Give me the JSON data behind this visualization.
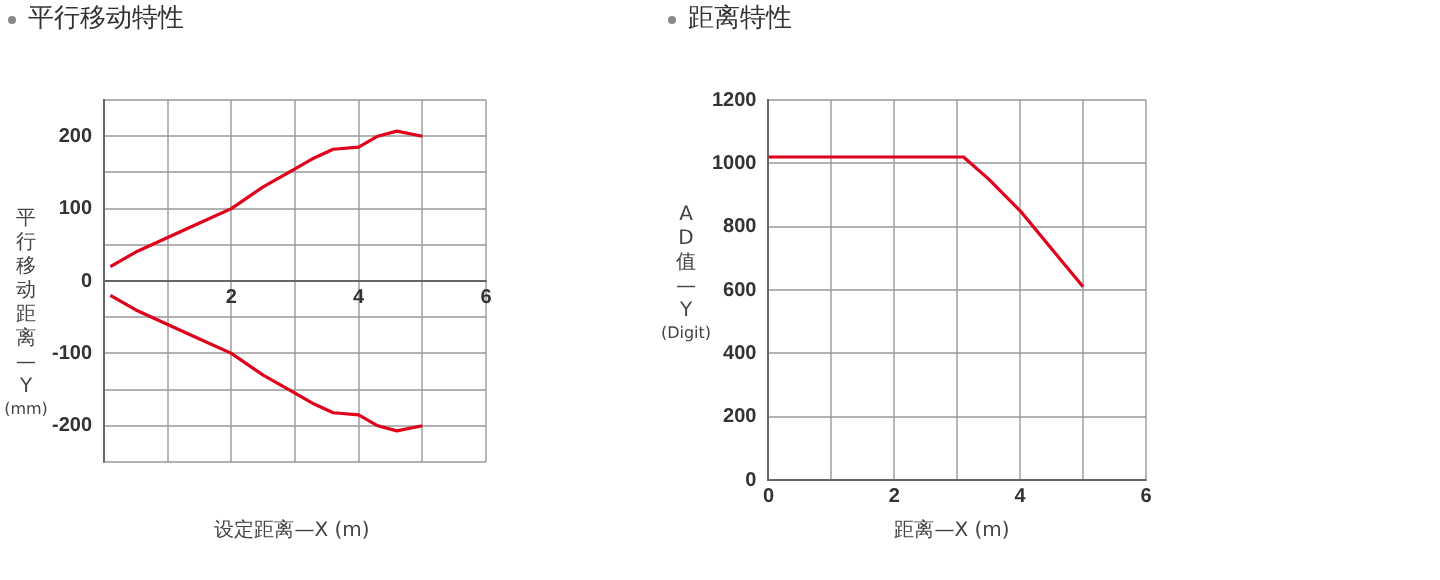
{
  "chart_data": [
    {
      "type": "line",
      "title": "平行移动特性",
      "xlabel": "设定距离—X (m)",
      "ylabel": "平行移动距离—Y (mm)",
      "marker": "none",
      "grid": true,
      "xlim": [
        0,
        6
      ],
      "xticks": [
        {
          "value": 0,
          "label": null
        },
        {
          "value": 1,
          "label": null
        },
        2,
        {
          "value": 3,
          "label": null
        },
        4,
        {
          "value": 5,
          "label": null
        },
        6
      ],
      "ylim": [
        -250,
        250
      ],
      "yticks": [
        {
          "value": -250,
          "label": null
        },
        -200,
        {
          "value": -150,
          "label": null
        },
        -100,
        {
          "value": -50,
          "label": null
        },
        0,
        {
          "value": 50,
          "label": null
        },
        100,
        {
          "value": 150,
          "label": null
        },
        200,
        {
          "value": 250,
          "label": null
        }
      ],
      "x": [
        0.1,
        0.5,
        1,
        1.5,
        2,
        2.5,
        3,
        3.3,
        3.6,
        4,
        4.3,
        4.6,
        5
      ],
      "series": [
        {
          "color": "#e0001b",
          "values": [
            20,
            40,
            60,
            80,
            100,
            130,
            155,
            170,
            182,
            185,
            200,
            207,
            200
          ]
        },
        {
          "color": "#e0001b",
          "values": [
            -20,
            -40,
            -60,
            -80,
            -100,
            -130,
            -155,
            -170,
            -182,
            -185,
            -200,
            -207,
            -200
          ]
        }
      ]
    },
    {
      "type": "line",
      "title": "距离特性",
      "xlabel": "距离—X (m)",
      "ylabel": "AD值—Y (Digit)",
      "marker": "none",
      "grid": true,
      "xlim": [
        0,
        6
      ],
      "xticks": [
        0,
        {
          "value": 1,
          "label": null
        },
        2,
        {
          "value": 3,
          "label": null
        },
        4,
        {
          "value": 5,
          "label": null
        },
        6
      ],
      "ylim": [
        0,
        1200
      ],
      "yticks": [
        0,
        200,
        400,
        600,
        800,
        1000,
        1200
      ],
      "x": [
        0,
        3.1,
        3.5,
        4,
        5
      ],
      "series": [
        {
          "color": "#e0001b",
          "values": [
            1020,
            1020,
            950,
            850,
            610
          ]
        }
      ]
    }
  ]
}
